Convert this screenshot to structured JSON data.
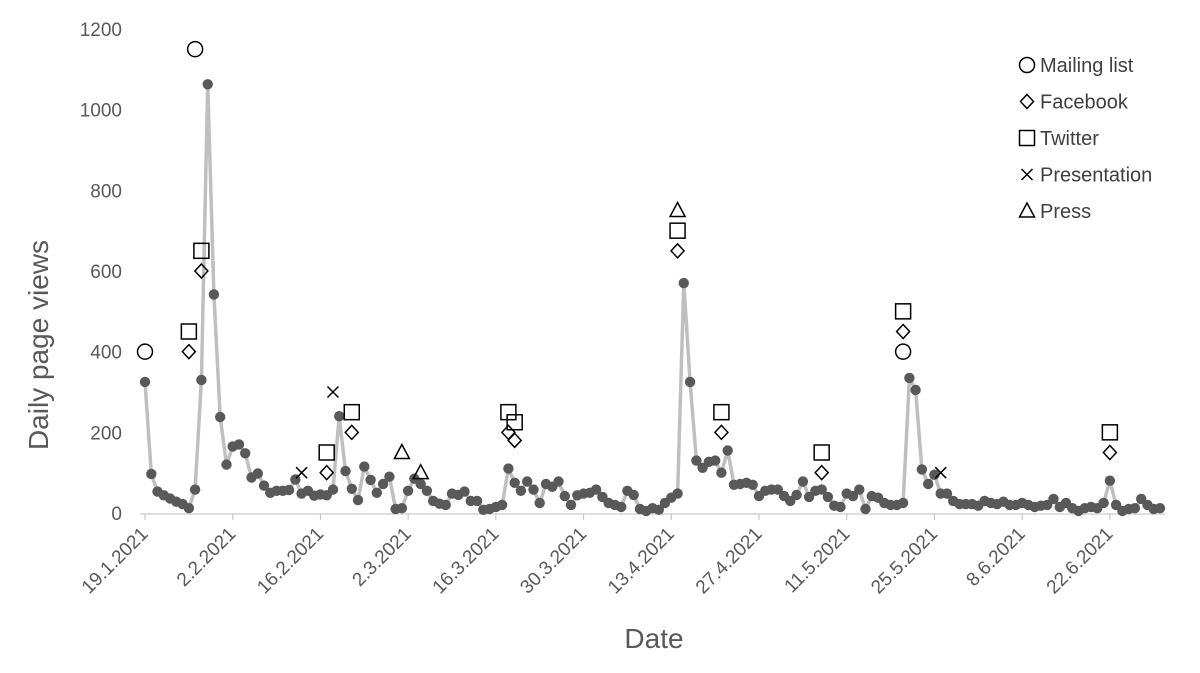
{
  "chart_data": {
    "type": "line",
    "title": "",
    "xlabel": "Date",
    "ylabel": "Daily page views",
    "ylim": [
      0,
      1200
    ],
    "yticks": [
      "0",
      "200",
      "400",
      "600",
      "800",
      "1000",
      "1200"
    ],
    "date_range": [
      "19.1.2021",
      "30.6.2021"
    ],
    "xticks": [
      "19.1.2021",
      "2.2.2021",
      "16.2.2021",
      "2.3.2021",
      "16.3.2021",
      "30.3.2021",
      "13.4.2021",
      "27.4.2021",
      "11.5.2021",
      "25.5.2021",
      "8.6.2021",
      "22.6.2021"
    ],
    "grid": false,
    "legend_position": "top-right",
    "colors": {
      "line": "#bfbfbf",
      "point": "#595959",
      "marker": "#000000",
      "text": "#595959"
    },
    "series": [
      {
        "values": [
          325,
          97,
          53,
          44,
          36,
          28,
          22,
          12,
          58,
          330,
          1063,
          542,
          238,
          120,
          165,
          170,
          148,
          88,
          98,
          68,
          50,
          55,
          55,
          57,
          83,
          48,
          55,
          43,
          46,
          44,
          58,
          240,
          104,
          60,
          32,
          115,
          82,
          50,
          72,
          90,
          10,
          12,
          55,
          85,
          72,
          55,
          30,
          23,
          20,
          48,
          45,
          53,
          30,
          30,
          8,
          10,
          15,
          20,
          110,
          75,
          55,
          78,
          58,
          25,
          72,
          65,
          78,
          42,
          20,
          44,
          48,
          50,
          58,
          40,
          25,
          20,
          15,
          55,
          45,
          10,
          5,
          12,
          8,
          25,
          38,
          48,
          570,
          325,
          130,
          112,
          127,
          130,
          100,
          155,
          70,
          72,
          75,
          70,
          42,
          55,
          58,
          58,
          42,
          30,
          45,
          78,
          40,
          55,
          58,
          40,
          18,
          15,
          48,
          42,
          58,
          10,
          42,
          38,
          25,
          20,
          20,
          25,
          335,
          305,
          108,
          72,
          95,
          48,
          48,
          30,
          22,
          22,
          22,
          18,
          30,
          25,
          22,
          28,
          20,
          20,
          25,
          20,
          15,
          18,
          20,
          35,
          15,
          25,
          12,
          5,
          12,
          15,
          12,
          25,
          80,
          20,
          5,
          10,
          12,
          35,
          20,
          10,
          12
        ]
      }
    ],
    "events": [
      {
        "type": "Mailing list",
        "date": "19.1.2021",
        "value": 400
      },
      {
        "type": "Twitter",
        "date": "26.1.2021",
        "value": 450
      },
      {
        "type": "Facebook",
        "date": "26.1.2021",
        "value": 400
      },
      {
        "type": "Mailing list",
        "date": "27.1.2021",
        "value": 1150
      },
      {
        "type": "Twitter",
        "date": "28.1.2021",
        "value": 650
      },
      {
        "type": "Facebook",
        "date": "28.1.2021",
        "value": 600
      },
      {
        "type": "Presentation",
        "date": "13.2.2021",
        "value": 100
      },
      {
        "type": "Twitter",
        "date": "17.2.2021",
        "value": 150
      },
      {
        "type": "Facebook",
        "date": "17.2.2021",
        "value": 100
      },
      {
        "type": "Presentation",
        "date": "18.2.2021",
        "value": 300
      },
      {
        "type": "Twitter",
        "date": "21.2.2021",
        "value": 250
      },
      {
        "type": "Facebook",
        "date": "21.2.2021",
        "value": 200
      },
      {
        "type": "Press",
        "date": "1.3.2021",
        "value": 150
      },
      {
        "type": "Press",
        "date": "4.3.2021",
        "value": 100
      },
      {
        "type": "Twitter",
        "date": "18.3.2021",
        "value": 250
      },
      {
        "type": "Facebook",
        "date": "18.3.2021",
        "value": 200
      },
      {
        "type": "Twitter",
        "date": "19.3.2021",
        "value": 225
      },
      {
        "type": "Facebook",
        "date": "19.3.2021",
        "value": 180
      },
      {
        "type": "Press",
        "date": "14.4.2021",
        "value": 750
      },
      {
        "type": "Twitter",
        "date": "14.4.2021",
        "value": 700
      },
      {
        "type": "Facebook",
        "date": "14.4.2021",
        "value": 650
      },
      {
        "type": "Twitter",
        "date": "21.4.2021",
        "value": 250
      },
      {
        "type": "Facebook",
        "date": "21.4.2021",
        "value": 200
      },
      {
        "type": "Twitter",
        "date": "7.5.2021",
        "value": 150
      },
      {
        "type": "Facebook",
        "date": "7.5.2021",
        "value": 100
      },
      {
        "type": "Twitter",
        "date": "20.5.2021",
        "value": 500
      },
      {
        "type": "Facebook",
        "date": "20.5.2021",
        "value": 450
      },
      {
        "type": "Mailing list",
        "date": "20.5.2021",
        "value": 400
      },
      {
        "type": "Presentation",
        "date": "26.5.2021",
        "value": 100
      },
      {
        "type": "Twitter",
        "date": "22.6.2021",
        "value": 200
      },
      {
        "type": "Facebook",
        "date": "22.6.2021",
        "value": 150
      }
    ],
    "legend": [
      "Mailing list",
      "Facebook",
      "Twitter",
      "Presentation",
      "Press"
    ]
  }
}
